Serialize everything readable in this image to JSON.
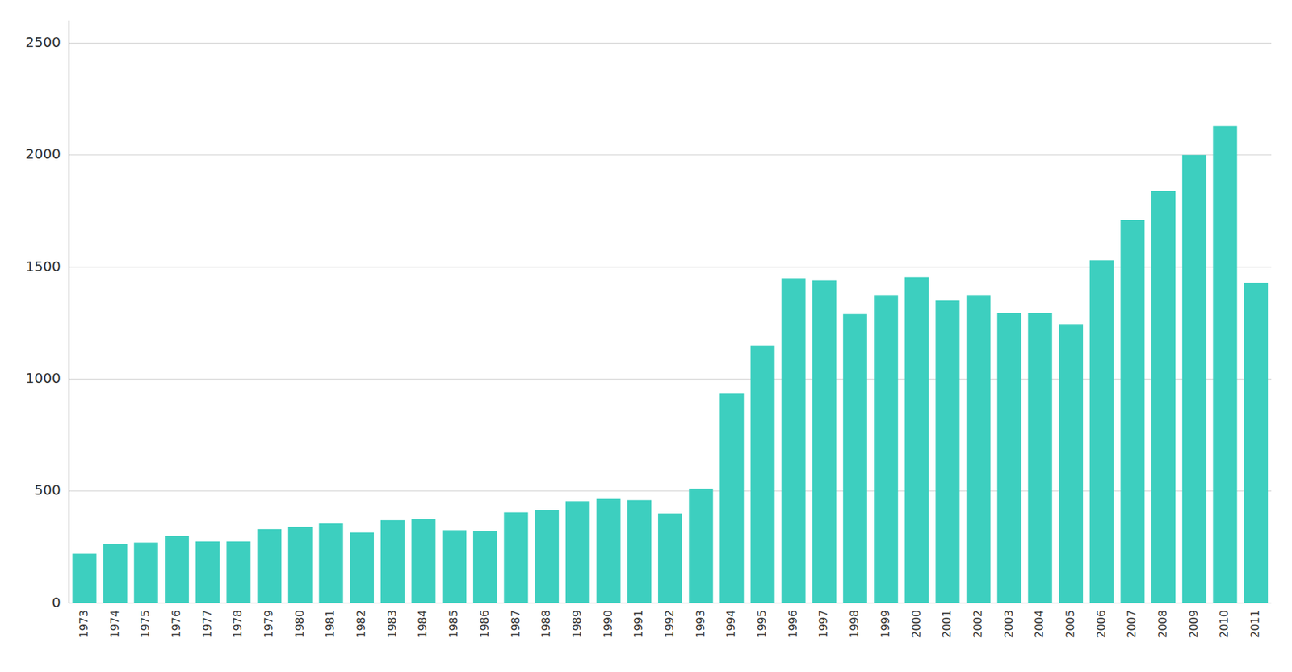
{
  "chart_data": {
    "type": "bar",
    "categories": [
      "1973",
      "1974",
      "1975",
      "1976",
      "1977",
      "1978",
      "1979",
      "1980",
      "1981",
      "1982",
      "1983",
      "1984",
      "1985",
      "1986",
      "1987",
      "1988",
      "1989",
      "1990",
      "1991",
      "1992",
      "1993",
      "1994",
      "1995",
      "1996",
      "1997",
      "1998",
      "1999",
      "2000",
      "2001",
      "2002",
      "2003",
      "2004",
      "2005",
      "2006",
      "2007",
      "2008",
      "2009",
      "2010",
      "2011"
    ],
    "values": [
      220,
      265,
      270,
      300,
      275,
      275,
      330,
      340,
      355,
      315,
      370,
      375,
      325,
      320,
      405,
      415,
      455,
      465,
      460,
      400,
      510,
      935,
      1150,
      1450,
      1440,
      1290,
      1375,
      1455,
      1350,
      1375,
      1295,
      1295,
      1245,
      1530,
      1710,
      1840,
      2000,
      2130,
      1430
    ],
    "color": "#3dcfbf",
    "ylim": [
      0,
      2600
    ],
    "yticks": [
      0,
      500,
      1000,
      1500,
      2000,
      2500
    ],
    "grid": true
  }
}
